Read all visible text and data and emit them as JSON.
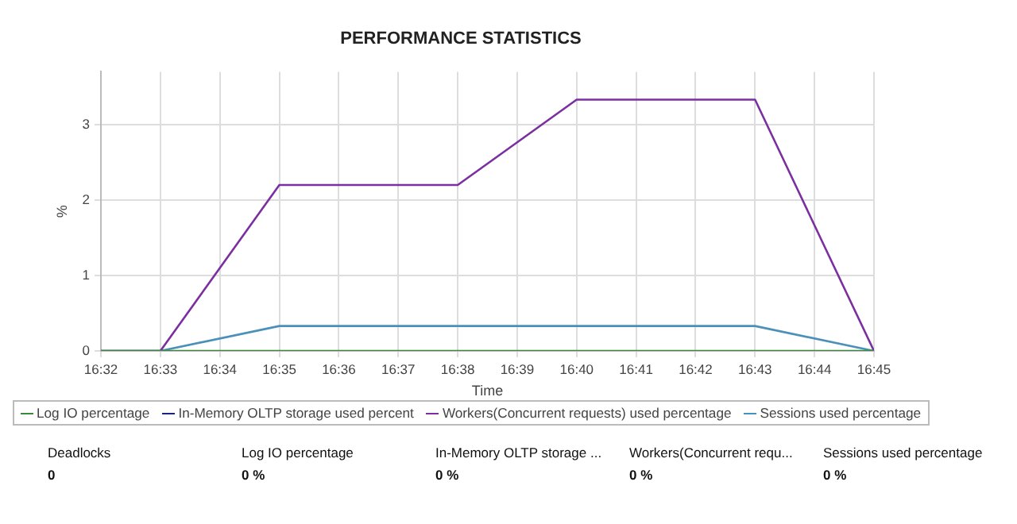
{
  "chart_data": {
    "type": "line",
    "title": "PERFORMANCE STATISTICS",
    "xlabel": "Time",
    "ylabel": "%",
    "xlim": [
      16.533333,
      16.75
    ],
    "xticks": [
      {
        "value": 16.533333,
        "label": "16:32"
      },
      {
        "value": 16.55,
        "label": "16:33"
      },
      {
        "value": 16.566667,
        "label": "16:34"
      },
      {
        "value": 16.583333,
        "label": "16:35"
      },
      {
        "value": 16.6,
        "label": "16:36"
      },
      {
        "value": 16.616667,
        "label": "16:37"
      },
      {
        "value": 16.633333,
        "label": "16:38"
      },
      {
        "value": 16.65,
        "label": "16:39"
      },
      {
        "value": 16.666667,
        "label": "16:40"
      },
      {
        "value": 16.683333,
        "label": "16:41"
      },
      {
        "value": 16.7,
        "label": "16:42"
      },
      {
        "value": 16.716667,
        "label": "16:43"
      },
      {
        "value": 16.733333,
        "label": "16:44"
      },
      {
        "value": 16.75,
        "label": "16:45"
      }
    ],
    "ylim": [
      0,
      3.7
    ],
    "yticks": [
      0,
      1,
      2,
      3
    ],
    "grid": true,
    "legend": "bottom",
    "marker": "none",
    "line_style": "solid",
    "x": [
      16.533333,
      16.55,
      16.583333,
      16.633333,
      16.666667,
      16.716667,
      16.75
    ],
    "series": [
      {
        "name": "Log IO percentage",
        "color": "#3a8a3a",
        "values": [
          0,
          0,
          0,
          0,
          0,
          0,
          0
        ]
      },
      {
        "name": "In-Memory OLTP storage used percent",
        "color": "#1a237e",
        "values": [
          null,
          null,
          null,
          null,
          null,
          null,
          null
        ]
      },
      {
        "name": "Workers(Concurrent requests) used percentage",
        "color": "#7b2fa0",
        "values": [
          0,
          0,
          2.2,
          2.2,
          3.33,
          3.33,
          0
        ]
      },
      {
        "name": "Sessions used percentage",
        "color": "#4a90b8",
        "values": [
          0,
          0,
          0.33,
          0.33,
          0.33,
          0.33,
          0
        ]
      }
    ],
    "annotations": [
      "Deadlocks",
      "0",
      "Log IO percentage",
      "0 %",
      "In-Memory OLTP storage ...",
      "0 %",
      "Workers(Concurrent requ...",
      "0 %",
      "Sessions used percentage",
      "0 %"
    ]
  }
}
